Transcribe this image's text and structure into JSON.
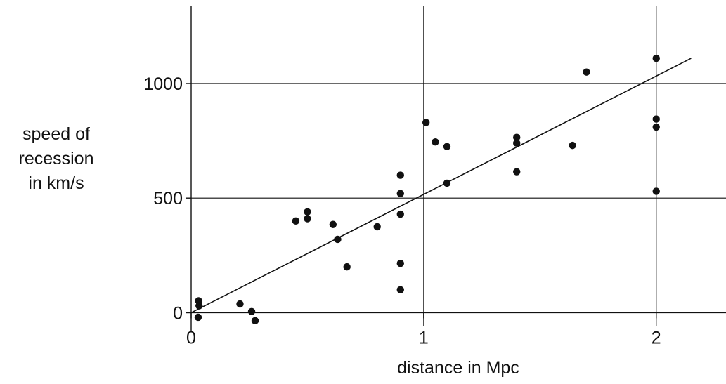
{
  "chart_data": {
    "type": "scatter",
    "xlabel": "distance in Mpc",
    "ylabel_lines": [
      "speed of",
      "recession",
      "in km/s"
    ],
    "xlim": [
      0,
      2.3
    ],
    "ylim": [
      -60,
      1340
    ],
    "x_ticks": [
      0,
      1,
      2
    ],
    "x_tick_labels": [
      "0",
      "1",
      "2"
    ],
    "y_ticks": [
      0,
      500,
      1000
    ],
    "y_tick_labels": [
      "0",
      "500",
      "1000"
    ],
    "grid": true,
    "points": [
      {
        "x": 0.032,
        "y": 52
      },
      {
        "x": 0.034,
        "y": 30
      },
      {
        "x": 0.03,
        "y": -20
      },
      {
        "x": 0.21,
        "y": 38
      },
      {
        "x": 0.26,
        "y": 5
      },
      {
        "x": 0.275,
        "y": -35
      },
      {
        "x": 0.45,
        "y": 400
      },
      {
        "x": 0.5,
        "y": 440
      },
      {
        "x": 0.5,
        "y": 410
      },
      {
        "x": 0.61,
        "y": 385
      },
      {
        "x": 0.63,
        "y": 320
      },
      {
        "x": 0.67,
        "y": 200
      },
      {
        "x": 0.8,
        "y": 375
      },
      {
        "x": 0.9,
        "y": 600
      },
      {
        "x": 0.9,
        "y": 520
      },
      {
        "x": 0.9,
        "y": 430
      },
      {
        "x": 0.9,
        "y": 215
      },
      {
        "x": 0.9,
        "y": 100
      },
      {
        "x": 1.01,
        "y": 830
      },
      {
        "x": 1.05,
        "y": 745
      },
      {
        "x": 1.1,
        "y": 725
      },
      {
        "x": 1.1,
        "y": 565
      },
      {
        "x": 1.4,
        "y": 765
      },
      {
        "x": 1.4,
        "y": 740
      },
      {
        "x": 1.4,
        "y": 615
      },
      {
        "x": 1.64,
        "y": 730
      },
      {
        "x": 1.7,
        "y": 1050
      },
      {
        "x": 2.0,
        "y": 1110
      },
      {
        "x": 2.0,
        "y": 845
      },
      {
        "x": 2.0,
        "y": 810
      },
      {
        "x": 2.0,
        "y": 530
      }
    ],
    "fit_line": {
      "x": [
        0,
        2.15
      ],
      "y": [
        0,
        1110
      ]
    }
  }
}
